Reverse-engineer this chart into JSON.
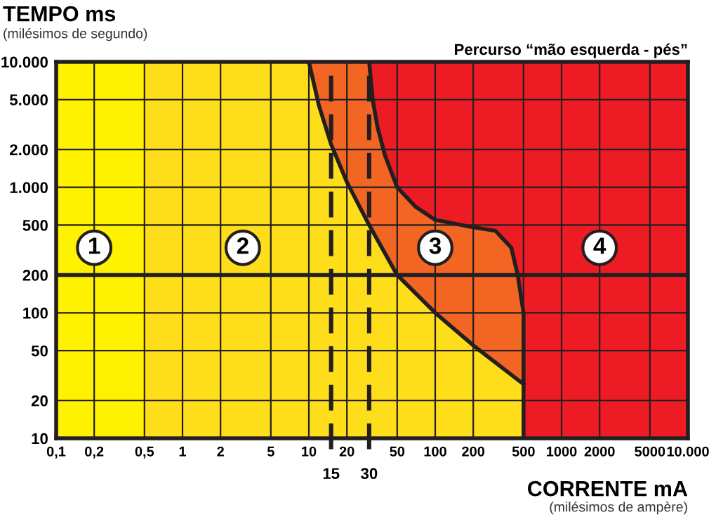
{
  "chart_data": {
    "type": "area",
    "title": "Percurso “mão esquerda - pés”",
    "ylabel": "TEMPO ms\n(milésimos de segundo)",
    "xlabel": "CORRENTE mA\n(milésimos de ampère)",
    "log": "xy",
    "xlim": [
      0.1,
      10000
    ],
    "ylim": [
      10,
      10000
    ],
    "xticks": [
      {
        "value": 0.1,
        "label": "0,1"
      },
      {
        "value": 0.2,
        "label": "0,2"
      },
      {
        "value": 0.5,
        "label": "0,5"
      },
      1,
      2,
      5,
      10,
      20,
      50,
      100,
      200,
      500,
      1000,
      2000,
      5000,
      {
        "value": 10000,
        "label": "10.000"
      }
    ],
    "yticks": [
      10,
      20,
      50,
      100,
      200,
      500,
      {
        "value": 1000,
        "label": "1.000"
      },
      {
        "value": 2000,
        "label": "2.000"
      },
      {
        "value": 5000,
        "label": "5.000"
      },
      {
        "value": 10000,
        "label": "10.000"
      }
    ],
    "grid": true,
    "bands": [
      {
        "axis": "x",
        "from": 0.1,
        "to": 0.5,
        "color": "#fff200"
      },
      {
        "axis": "x",
        "from": 0.5,
        "to": 10,
        "color": "#fedd1a"
      },
      {
        "axis": "x",
        "from": 10,
        "to": 30,
        "color": "#f26522"
      },
      {
        "axis": "x",
        "from": 30,
        "to": 10000,
        "color": "#ed1c24"
      }
    ],
    "series": [
      {
        "color": "#f26522",
        "x": [
          30,
          32,
          35,
          40,
          50,
          70,
          100,
          200,
          300,
          400,
          450,
          500,
          500
        ],
        "values": [
          10000,
          5000,
          3000,
          1800,
          1000,
          700,
          550,
          480,
          450,
          330,
          200,
          100,
          10
        ]
      },
      {
        "color": "#fedd1a",
        "x": [
          10,
          12,
          15,
          20,
          30,
          50,
          100,
          200,
          500
        ],
        "values": [
          10000,
          4500,
          2200,
          1100,
          500,
          200,
          100,
          55,
          27
        ]
      }
    ],
    "ref_lines": [
      {
        "axis": "y",
        "value": 200,
        "line_style": "solid",
        "color": "#231f20"
      },
      {
        "axis": "x",
        "value": 15,
        "label": "15",
        "line_style": "dashed",
        "color": "#231f20"
      },
      {
        "axis": "x",
        "value": 30,
        "label": "30",
        "line_style": "dashed",
        "color": "#231f20"
      }
    ],
    "annotations": [
      {
        "text": "1",
        "x": 0.2,
        "y": 330
      },
      {
        "text": "2",
        "x": 3,
        "y": 330
      },
      {
        "text": "3",
        "x": 100,
        "y": 330
      },
      {
        "text": "4",
        "x": 2000,
        "y": 330
      }
    ]
  }
}
